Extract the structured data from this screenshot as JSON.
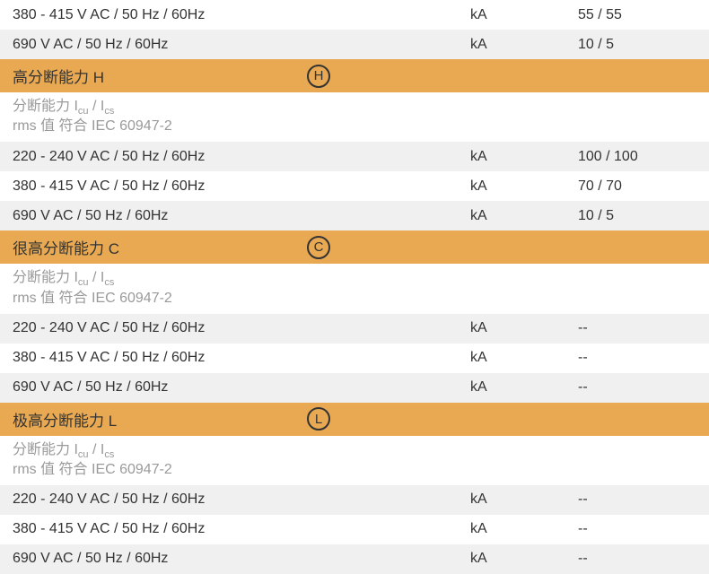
{
  "colors": {
    "section_bg": "#e8a952",
    "row_alt_bg": "#f0f0f0",
    "row_bg": "#ffffff",
    "text": "#333333",
    "subheader_text": "#9a9a9a",
    "badge_border": "#333333"
  },
  "top_rows": [
    {
      "label": "380 - 415 V AC / 50 Hz / 60Hz",
      "unit": "kA",
      "value": "55 / 55",
      "alt": false
    },
    {
      "label": "690 V AC / 50 Hz / 60Hz",
      "unit": "kA",
      "value": "10 / 5",
      "alt": true
    }
  ],
  "sections": [
    {
      "title": "高分断能力 H",
      "badge": "H",
      "sub_line1_a": "分断能力 I",
      "sub_line1_b": "cu",
      "sub_line1_c": " / I",
      "sub_line1_d": "cs",
      "sub_line2": "rms 值 符合 IEC 60947-2",
      "rows": [
        {
          "label": "220 - 240 V AC / 50 Hz / 60Hz",
          "unit": "kA",
          "value": "100 / 100",
          "alt": true
        },
        {
          "label": "380 - 415 V AC / 50 Hz / 60Hz",
          "unit": "kA",
          "value": "70 / 70",
          "alt": false
        },
        {
          "label": "690 V AC / 50 Hz / 60Hz",
          "unit": "kA",
          "value": "10 / 5",
          "alt": true
        }
      ]
    },
    {
      "title": "很高分断能力 C",
      "badge": "C",
      "sub_line1_a": "分断能力 I",
      "sub_line1_b": "cu",
      "sub_line1_c": " / I",
      "sub_line1_d": "cs",
      "sub_line2": "rms 值 符合 IEC 60947-2",
      "rows": [
        {
          "label": "220 - 240 V AC / 50 Hz / 60Hz",
          "unit": "kA",
          "value": "--",
          "alt": true
        },
        {
          "label": "380 - 415 V AC / 50 Hz / 60Hz",
          "unit": "kA",
          "value": "--",
          "alt": false
        },
        {
          "label": "690 V AC / 50 Hz / 60Hz",
          "unit": "kA",
          "value": "--",
          "alt": true
        }
      ]
    },
    {
      "title": "极高分断能力 L",
      "badge": "L",
      "sub_line1_a": "分断能力 I",
      "sub_line1_b": "cu",
      "sub_line1_c": " / I",
      "sub_line1_d": "cs",
      "sub_line2": "rms 值 符合 IEC 60947-2",
      "rows": [
        {
          "label": "220 - 240 V AC / 50 Hz / 60Hz",
          "unit": "kA",
          "value": "--",
          "alt": true
        },
        {
          "label": "380 - 415 V AC / 50 Hz / 60Hz",
          "unit": "kA",
          "value": "--",
          "alt": false
        },
        {
          "label": "690 V AC / 50 Hz / 60Hz",
          "unit": "kA",
          "value": "--",
          "alt": true
        }
      ]
    }
  ]
}
